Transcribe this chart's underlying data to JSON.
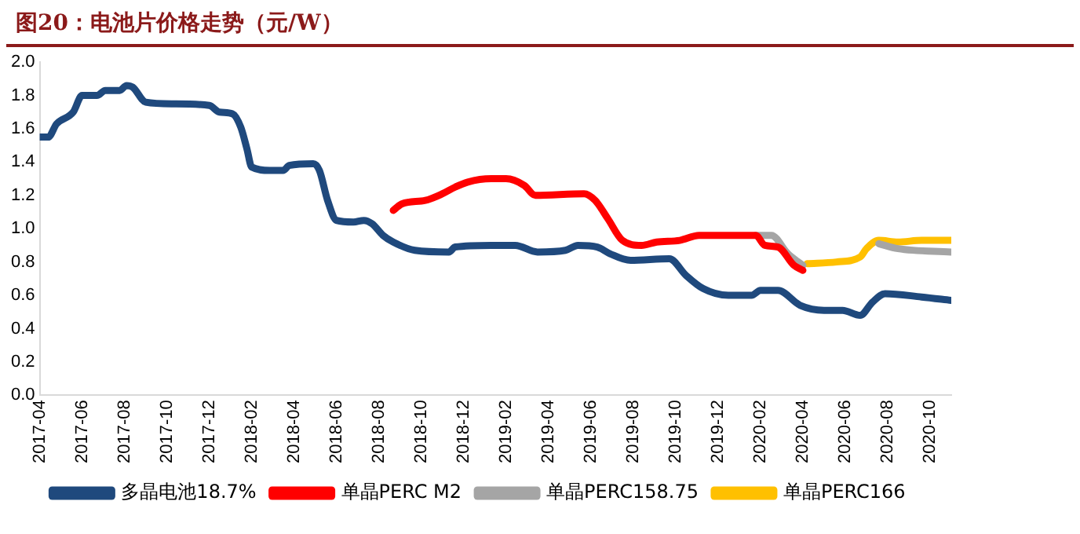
{
  "chart_data": {
    "type": "line",
    "title": "图20：电池片价格走势（元/W）",
    "xlim": [
      "2017-04",
      "2020-11"
    ],
    "xticks": [
      "2017-04",
      "2017-06",
      "2017-08",
      "2017-10",
      "2017-12",
      "2018-02",
      "2018-04",
      "2018-06",
      "2018-08",
      "2018-10",
      "2018-12",
      "2019-02",
      "2019-04",
      "2019-06",
      "2019-08",
      "2019-10",
      "2019-12",
      "2020-02",
      "2020-04",
      "2020-06",
      "2020-08",
      "2020-10"
    ],
    "ylim": [
      0,
      2
    ],
    "yticks": [
      {
        "value": 0,
        "label": "0.0"
      },
      {
        "value": 0.2,
        "label": "0.2"
      },
      {
        "value": 0.4,
        "label": "0.4"
      },
      {
        "value": 0.6,
        "label": "0.6"
      },
      {
        "value": 0.8,
        "label": "0.8"
      },
      {
        "value": 1,
        "label": "1.0"
      },
      {
        "value": 1.2,
        "label": "1.2"
      },
      {
        "value": 1.4,
        "label": "1.4"
      },
      {
        "value": 1.6,
        "label": "1.6"
      },
      {
        "value": 1.8,
        "label": "1.8"
      },
      {
        "value": 2,
        "label": "2.0"
      }
    ],
    "grid": false,
    "legend": "bottom",
    "marker": "none",
    "line_style": "solid",
    "series": [
      {
        "name": "多晶电池18.7%",
        "color": "#1f497d",
        "x": [
          "2017-04-01",
          "2017-04-13",
          "2017-04-25",
          "2017-05-19",
          "2017-06-01",
          "2017-06-22",
          "2017-07-04",
          "2017-07-25",
          "2017-08-04",
          "2017-08-13",
          "2017-09-01",
          "2017-10-10",
          "2017-12-01",
          "2017-12-16",
          "2018-01-04",
          "2018-01-16",
          "2018-01-25",
          "2018-02-01",
          "2018-02-25",
          "2018-03-16",
          "2018-03-25",
          "2018-04-28",
          "2018-05-07",
          "2018-05-19",
          "2018-06-01",
          "2018-06-25",
          "2018-07-10",
          "2018-07-22",
          "2018-08-07",
          "2018-08-22",
          "2018-09-22",
          "2018-11-10",
          "2018-11-19",
          "2019-01-10",
          "2019-02-13",
          "2019-03-16",
          "2019-04-25",
          "2019-05-13",
          "2019-06-10",
          "2019-06-28",
          "2019-07-28",
          "2019-09-22",
          "2019-10-16",
          "2019-11-10",
          "2019-12-16",
          "2020-01-19",
          "2020-02-01",
          "2020-02-25",
          "2020-03-28",
          "2020-05-01",
          "2020-05-28",
          "2020-06-22",
          "2020-07-10",
          "2020-07-28",
          "2020-09-19",
          "2020-11-01"
        ],
        "values": [
          1.55,
          1.55,
          1.63,
          1.7,
          1.8,
          1.8,
          1.83,
          1.83,
          1.86,
          1.85,
          1.76,
          1.75,
          1.74,
          1.7,
          1.69,
          1.61,
          1.48,
          1.37,
          1.35,
          1.35,
          1.38,
          1.39,
          1.35,
          1.17,
          1.05,
          1.04,
          1.05,
          1.03,
          0.96,
          0.92,
          0.87,
          0.86,
          0.89,
          0.9,
          0.9,
          0.86,
          0.87,
          0.9,
          0.89,
          0.85,
          0.81,
          0.82,
          0.72,
          0.64,
          0.6,
          0.6,
          0.63,
          0.63,
          0.54,
          0.51,
          0.51,
          0.48,
          0.56,
          0.61,
          0.59,
          0.57
        ]
      },
      {
        "name": "单晶PERC M2",
        "color": "#ff0000",
        "x": [
          "2018-08-22",
          "2018-09-04",
          "2018-10-07",
          "2018-11-01",
          "2018-11-19",
          "2018-12-07",
          "2019-01-10",
          "2019-02-01",
          "2019-02-25",
          "2019-03-13",
          "2019-05-22",
          "2019-06-07",
          "2019-06-25",
          "2019-07-16",
          "2019-08-13",
          "2019-09-04",
          "2019-10-07",
          "2019-11-04",
          "2020-01-25",
          "2020-02-07",
          "2020-02-25",
          "2020-03-19",
          "2020-04-01"
        ],
        "values": [
          1.11,
          1.15,
          1.17,
          1.21,
          1.25,
          1.28,
          1.3,
          1.3,
          1.26,
          1.2,
          1.21,
          1.17,
          1.06,
          0.93,
          0.9,
          0.92,
          0.93,
          0.96,
          0.96,
          0.9,
          0.89,
          0.78,
          0.75
        ]
      },
      {
        "name": "单晶PERC158.75",
        "color": "#a5a5a5",
        "x": [
          "2020-01-25",
          "2020-02-16",
          "2020-03-10",
          "2020-04-01",
          "2020-05-15",
          "2020-07-19",
          "2020-08-16",
          "2020-11-01"
        ],
        "values": [
          0.96,
          0.96,
          0.85,
          0.78,
          null,
          0.91,
          0.88,
          0.86
        ]
      },
      {
        "name": "单晶PERC166",
        "color": "#ffc000",
        "x": [
          "2020-04-07",
          "2020-05-19",
          "2020-06-22",
          "2020-07-01",
          "2020-07-19",
          "2020-08-16",
          "2020-09-19",
          "2020-11-01"
        ],
        "values": [
          0.79,
          0.8,
          0.83,
          0.88,
          0.93,
          0.92,
          0.93,
          0.93
        ]
      }
    ]
  }
}
